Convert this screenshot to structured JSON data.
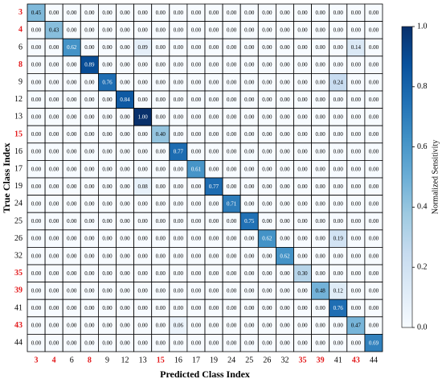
{
  "chart_data": {
    "type": "heatmap",
    "xlabel": "Predicted Class Index",
    "ylabel": "True Class Index",
    "colorbar_label": "Normalized Sensitivity",
    "colormap": [
      "#f7fbff",
      "#deebf7",
      "#c6dbef",
      "#9ecae1",
      "#6baed6",
      "#4292c6",
      "#2171b5",
      "#08519c",
      "#08306b"
    ],
    "highlight_color": "#e31a1c",
    "categories": [
      "3",
      "4",
      "6",
      "8",
      "9",
      "12",
      "13",
      "15",
      "16",
      "17",
      "19",
      "24",
      "25",
      "26",
      "32",
      "35",
      "39",
      "41",
      "43",
      "44"
    ],
    "highlight": [
      true,
      true,
      false,
      true,
      false,
      false,
      false,
      true,
      false,
      false,
      false,
      false,
      false,
      false,
      false,
      true,
      true,
      false,
      true,
      false
    ],
    "clim": [
      0,
      1
    ],
    "cticks": [
      {
        "value": 0,
        "label": "0.0"
      },
      0.2,
      0.4,
      0.6,
      0.8,
      {
        "value": 1,
        "label": "1.0"
      }
    ],
    "values": [
      [
        0.45,
        0,
        0,
        0,
        0,
        0,
        0,
        0,
        0,
        0,
        0,
        0,
        0,
        0,
        0,
        0,
        0,
        0,
        0,
        0
      ],
      [
        0,
        0.43,
        0,
        0,
        0,
        0,
        0,
        0,
        0,
        0,
        0,
        0,
        0,
        0,
        0,
        0,
        0,
        0,
        0,
        0
      ],
      [
        0,
        0,
        0.62,
        0,
        0,
        0,
        0.09,
        0,
        0,
        0,
        0,
        0,
        0,
        0,
        0,
        0,
        0,
        0,
        0.14,
        0
      ],
      [
        0,
        0,
        0,
        0.89,
        0,
        0,
        0,
        0,
        0,
        0,
        0,
        0,
        0,
        0,
        0,
        0,
        0,
        0,
        0,
        0
      ],
      [
        0,
        0,
        0,
        0,
        0.76,
        0,
        0,
        0,
        0,
        0,
        0,
        0,
        0,
        0,
        0,
        0,
        0,
        0.24,
        0,
        0
      ],
      [
        0,
        0,
        0,
        0,
        0,
        0.84,
        0,
        0,
        0,
        0,
        0,
        0,
        0,
        0,
        0,
        0,
        0,
        0,
        0,
        0
      ],
      [
        0,
        0,
        0,
        0,
        0,
        0,
        1,
        0,
        0,
        0,
        0,
        0,
        0,
        0,
        0,
        0,
        0,
        0,
        0,
        0
      ],
      [
        0,
        0,
        0,
        0,
        0,
        0,
        0,
        0.4,
        0,
        0,
        0,
        0,
        0,
        0,
        0,
        0,
        0,
        0,
        0,
        0
      ],
      [
        0,
        0,
        0,
        0,
        0,
        0,
        0,
        0,
        0.77,
        0,
        0,
        0,
        0,
        0,
        0,
        0,
        0,
        0,
        0,
        0
      ],
      [
        0,
        0,
        0,
        0,
        0,
        0,
        0,
        0,
        0,
        0.61,
        0,
        0,
        0,
        0,
        0,
        0,
        0,
        0,
        0,
        0
      ],
      [
        0,
        0,
        0,
        0,
        0,
        0,
        0.08,
        0,
        0,
        0,
        0.77,
        0,
        0,
        0,
        0,
        0,
        0,
        0,
        0,
        0
      ],
      [
        0,
        0,
        0,
        0,
        0,
        0,
        0,
        0,
        0,
        0,
        0,
        0.71,
        0,
        0,
        0,
        0,
        0,
        0,
        0,
        0
      ],
      [
        0,
        0,
        0,
        0,
        0,
        0,
        0,
        0,
        0,
        0,
        0,
        0,
        0.75,
        0,
        0,
        0,
        0,
        0,
        0,
        0
      ],
      [
        0,
        0,
        0,
        0,
        0,
        0,
        0,
        0,
        0,
        0,
        0,
        0,
        0,
        0.62,
        0,
        0,
        0,
        0.19,
        0,
        0
      ],
      [
        0,
        0,
        0,
        0,
        0,
        0,
        0,
        0,
        0,
        0,
        0,
        0,
        0,
        0,
        0.62,
        0,
        0,
        0,
        0,
        0
      ],
      [
        0,
        0,
        0,
        0,
        0,
        0,
        0,
        0,
        0,
        0,
        0,
        0,
        0,
        0,
        0,
        0.3,
        0,
        0,
        0,
        0
      ],
      [
        0,
        0,
        0,
        0,
        0,
        0,
        0,
        0,
        0,
        0,
        0,
        0,
        0,
        0,
        0,
        0,
        0.48,
        0.12,
        0,
        0
      ],
      [
        0,
        0,
        0,
        0,
        0,
        0,
        0,
        0,
        0,
        0,
        0,
        0,
        0,
        0,
        0,
        0,
        0,
        0.76,
        0,
        0
      ],
      [
        0,
        0,
        0,
        0,
        0,
        0,
        0,
        0,
        0.06,
        0,
        0,
        0,
        0,
        0,
        0,
        0,
        0,
        0,
        0.47,
        0
      ],
      [
        0,
        0,
        0,
        0,
        0,
        0,
        0,
        0,
        0,
        0,
        0,
        0,
        0,
        0,
        0,
        0,
        0,
        0,
        0,
        0.69
      ]
    ],
    "value_labels": [
      [
        "0.45",
        "0.00",
        "0.00",
        "0.00",
        "0.00",
        "0.00",
        "0.00",
        "0.00",
        "0.00",
        "0.00",
        "0.00",
        "0.00",
        "0.00",
        "0.00",
        "0.00",
        "0.00",
        "0.00",
        "0.00",
        "0.00",
        "0.00"
      ],
      [
        "0.00",
        "0.43",
        "0.00",
        "0.00",
        "0.00",
        "0.00",
        "0.00",
        "0.00",
        "0.00",
        "0.00",
        "0.00",
        "0.00",
        "0.00",
        "0.00",
        "0.00",
        "0.00",
        "0.00",
        "0.00",
        "0.00",
        "0.00"
      ],
      [
        "0.00",
        "0.00",
        "0.62",
        "0.00",
        "0.00",
        "0.00",
        "0.09",
        "0.00",
        "0.00",
        "0.00",
        "0.00",
        "0.00",
        "0.00",
        "0.00",
        "0.00",
        "0.00",
        "0.00",
        "0.00",
        "0.14",
        "0.00"
      ],
      [
        "0.00",
        "0.00",
        "0.00",
        "0.89",
        "0.00",
        "0.00",
        "0.00",
        "0.00",
        "0.00",
        "0.00",
        "0.00",
        "0.00",
        "0.00",
        "0.00",
        "0.00",
        "0.00",
        "0.00",
        "0.00",
        "0.00",
        "0.00"
      ],
      [
        "0.00",
        "0.00",
        "0.00",
        "0.00",
        "0.76",
        "0.00",
        "0.00",
        "0.00",
        "0.00",
        "0.00",
        "0.00",
        "0.00",
        "0.00",
        "0.00",
        "0.00",
        "0.00",
        "0.00",
        "0.24",
        "0.00",
        "0.00"
      ],
      [
        "0.00",
        "0.00",
        "0.00",
        "0.00",
        "0.00",
        "0.84",
        "0.00",
        "0.00",
        "0.00",
        "0.00",
        "0.00",
        "0.00",
        "0.00",
        "0.00",
        "0.00",
        "0.00",
        "0.00",
        "0.00",
        "0.00",
        "0.00"
      ],
      [
        "0.00",
        "0.00",
        "0.00",
        "0.00",
        "0.00",
        "0.00",
        "1.00",
        "0.00",
        "0.00",
        "0.00",
        "0.00",
        "0.00",
        "0.00",
        "0.00",
        "0.00",
        "0.00",
        "0.00",
        "0.00",
        "0.00",
        "0.00"
      ],
      [
        "0.00",
        "0.00",
        "0.00",
        "0.00",
        "0.00",
        "0.00",
        "0.00",
        "0.40",
        "0.00",
        "0.00",
        "0.00",
        "0.00",
        "0.00",
        "0.00",
        "0.00",
        "0.00",
        "0.00",
        "0.00",
        "0.00",
        "0.00"
      ],
      [
        "0.00",
        "0.00",
        "0.00",
        "0.00",
        "0.00",
        "0.00",
        "0.00",
        "0.00",
        "0.77",
        "0.00",
        "0.00",
        "0.00",
        "0.00",
        "0.00",
        "0.00",
        "0.00",
        "0.00",
        "0.00",
        "0.00",
        "0.00"
      ],
      [
        "0.00",
        "0.00",
        "0.00",
        "0.00",
        "0.00",
        "0.00",
        "0.00",
        "0.00",
        "0.00",
        "0.61",
        "0.00",
        "0.00",
        "0.00",
        "0.00",
        "0.00",
        "0.00",
        "0.00",
        "0.00",
        "0.00",
        "0.00"
      ],
      [
        "0.00",
        "0.00",
        "0.00",
        "0.00",
        "0.00",
        "0.00",
        "0.08",
        "0.00",
        "0.00",
        "0.00",
        "0.77",
        "0.00",
        "0.00",
        "0.00",
        "0.00",
        "0.00",
        "0.00",
        "0.00",
        "0.00",
        "0.00"
      ],
      [
        "0.00",
        "0.00",
        "0.00",
        "0.00",
        "0.00",
        "0.00",
        "0.00",
        "0.00",
        "0.00",
        "0.00",
        "0.00",
        "0.71",
        "0.00",
        "0.00",
        "0.00",
        "0.00",
        "0.00",
        "0.00",
        "0.00",
        "0.00"
      ],
      [
        "0.00",
        "0.00",
        "0.00",
        "0.00",
        "0.00",
        "0.00",
        "0.00",
        "0.00",
        "0.00",
        "0.00",
        "0.00",
        "0.00",
        "0.75",
        "0.00",
        "0.00",
        "0.00",
        "0.00",
        "0.00",
        "0.00",
        "0.00"
      ],
      [
        "0.00",
        "0.00",
        "0.00",
        "0.00",
        "0.00",
        "0.00",
        "0.00",
        "0.00",
        "0.00",
        "0.00",
        "0.00",
        "0.00",
        "0.00",
        "0.62",
        "0.00",
        "0.00",
        "0.00",
        "0.19",
        "0.00",
        "0.00"
      ],
      [
        "0.00",
        "0.00",
        "0.00",
        "0.00",
        "0.00",
        "0.00",
        "0.00",
        "0.00",
        "0.00",
        "0.00",
        "0.00",
        "0.00",
        "0.00",
        "0.00",
        "0.62",
        "0.00",
        "0.00",
        "0.00",
        "0.00",
        "0.00"
      ],
      [
        "0.00",
        "0.00",
        "0.00",
        "0.00",
        "0.00",
        "0.00",
        "0.00",
        "0.00",
        "0.00",
        "0.00",
        "0.00",
        "0.00",
        "0.00",
        "0.00",
        "0.00",
        "0.30",
        "0.00",
        "0.00",
        "0.00",
        "0.00"
      ],
      [
        "0.00",
        "0.00",
        "0.00",
        "0.00",
        "0.00",
        "0.00",
        "0.00",
        "0.00",
        "0.00",
        "0.00",
        "0.00",
        "0.00",
        "0.00",
        "0.00",
        "0.00",
        "0.00",
        "0.48",
        "0.12",
        "0.00",
        "0.00"
      ],
      [
        "0.00",
        "0.00",
        "0.00",
        "0.00",
        "0.00",
        "0.00",
        "0.00",
        "0.00",
        "0.00",
        "0.00",
        "0.00",
        "0.00",
        "0.00",
        "0.00",
        "0.00",
        "0.00",
        "0.00",
        "0.76",
        "0.00",
        "0.00"
      ],
      [
        "0.00",
        "0.00",
        "0.00",
        "0.00",
        "0.00",
        "0.00",
        "0.00",
        "0.00",
        "0.06",
        "0.00",
        "0.00",
        "0.00",
        "0.00",
        "0.00",
        "0.00",
        "0.00",
        "0.00",
        "0.00",
        "0.47",
        "0.00"
      ],
      [
        "0.00",
        "0.00",
        "0.00",
        "0.00",
        "0.00",
        "0.00",
        "0.00",
        "0.00",
        "0.00",
        "0.00",
        "0.00",
        "0.00",
        "0.00",
        "0.00",
        "0.00",
        "0.00",
        "0.00",
        "0.00",
        "0.00",
        "0.69"
      ]
    ]
  }
}
